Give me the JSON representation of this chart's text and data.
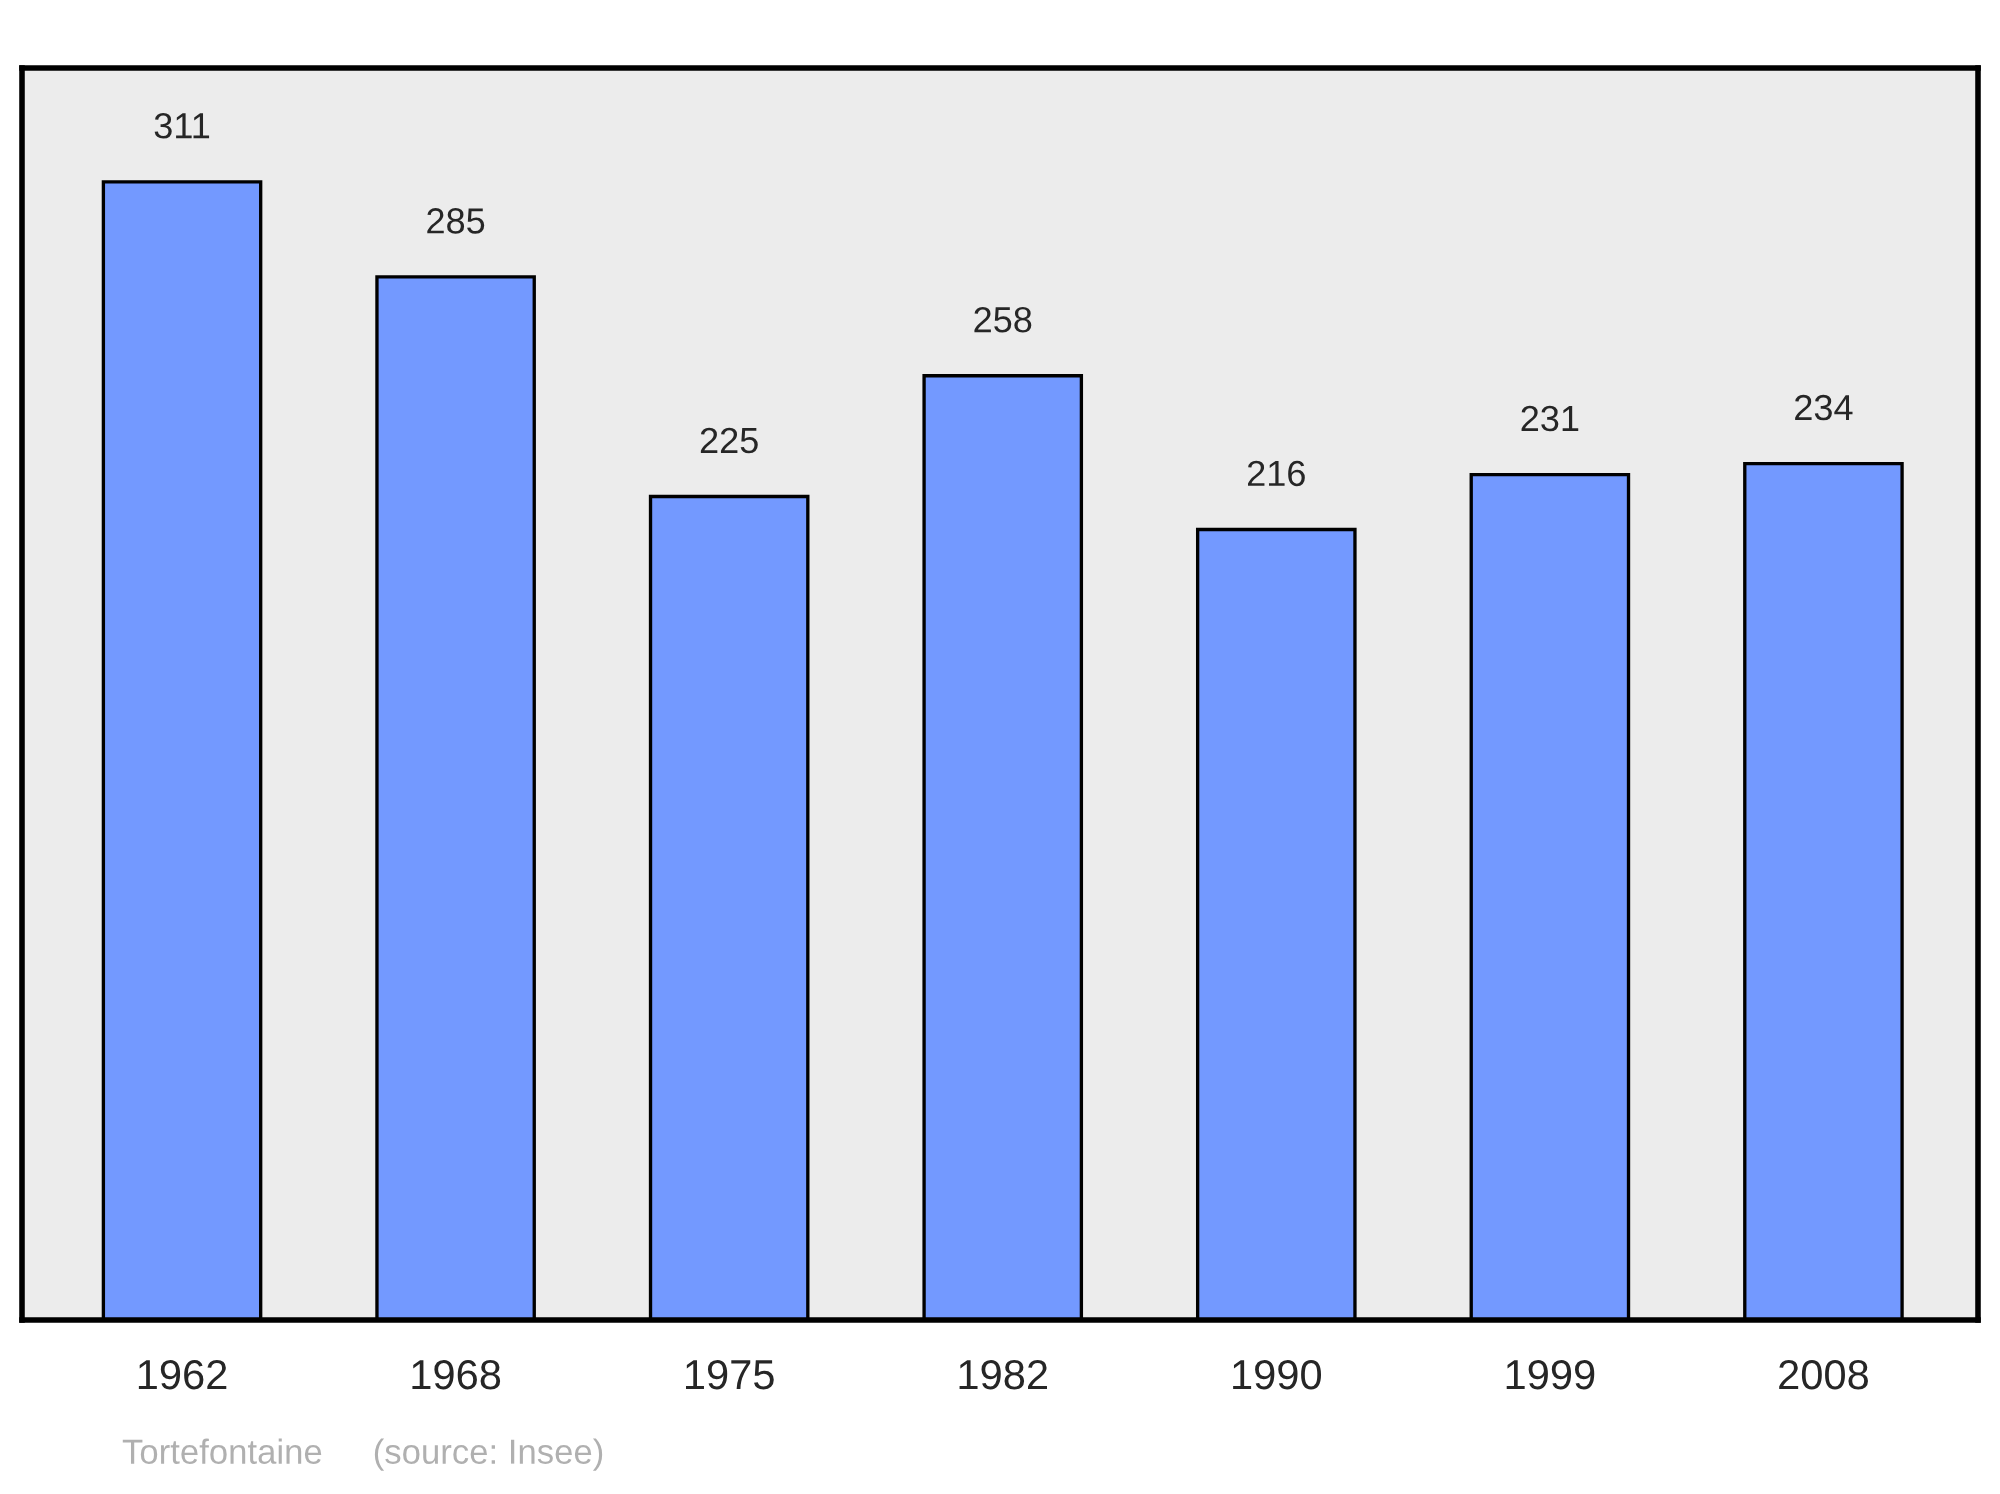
{
  "chart_data": {
    "type": "bar",
    "categories": [
      "1962",
      "1968",
      "1975",
      "1982",
      "1990",
      "1999",
      "2008"
    ],
    "values": [
      311,
      285,
      225,
      258,
      216,
      231,
      234
    ],
    "color": "#7399ff",
    "data_labels": true,
    "annotations": [
      "Tortefontaine",
      "(source: Insee)"
    ]
  }
}
